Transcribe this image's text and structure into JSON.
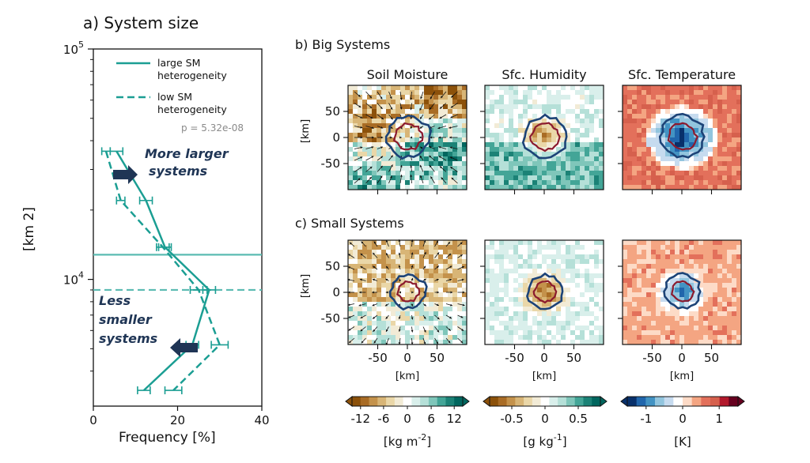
{
  "chart_data": [
    {
      "type": "line",
      "title": "a) System size",
      "xlabel": "Frequency [%]",
      "ylabel": "[km 2]",
      "xlim": [
        0,
        40
      ],
      "ylim_log10": [
        3.45,
        5.0
      ],
      "xticks": [
        "0",
        "20",
        "40"
      ],
      "yticks": [
        {
          "base": "10",
          "exp": "4",
          "value": 10000
        },
        {
          "base": "10",
          "exp": "5",
          "value": 100000
        }
      ],
      "series": [
        {
          "name": "large SM heterogeneity",
          "style": "solid",
          "color": "#1b9e93",
          "points": [
            {
              "x": 5.5,
              "xerr": 1.5,
              "y": 36000
            },
            {
              "x": 12.5,
              "xerr": 1.5,
              "y": 22000
            },
            {
              "x": 17.0,
              "xerr": 1.5,
              "y": 13800
            },
            {
              "x": 27.5,
              "xerr": 1.5,
              "y": 9000
            },
            {
              "x": 23.5,
              "xerr": 1.5,
              "y": 5200
            },
            {
              "x": 12.0,
              "xerr": 1.5,
              "y": 3300
            }
          ],
          "hline": 12800
        },
        {
          "name": "low SM heterogeneity",
          "style": "dashed",
          "color": "#1b9e93",
          "points": [
            {
              "x": 3.0,
              "xerr": 1.0,
              "y": 36000
            },
            {
              "x": 6.5,
              "xerr": 1.0,
              "y": 22000
            },
            {
              "x": 16.5,
              "xerr": 1.5,
              "y": 13800
            },
            {
              "x": 25.0,
              "xerr": 2.0,
              "y": 9000
            },
            {
              "x": 30.0,
              "xerr": 2.0,
              "y": 5200
            },
            {
              "x": 19.0,
              "xerr": 2.0,
              "y": 3300
            }
          ],
          "hline": 9000
        }
      ],
      "legend": [
        "large SM heterogeneity",
        "low SM heterogeneity"
      ],
      "annotations": [
        "p = 5.32e-08",
        "More larger systems",
        "Less smaller systems"
      ]
    },
    {
      "type": "heatmap",
      "title": "b) Big Systems",
      "panels": [
        "Soil Moisture",
        "Sfc. Humidity",
        "Sfc. Temperature"
      ],
      "xlabel": "[km]",
      "ylabel": "[km]",
      "axis_range": [
        -100,
        100
      ],
      "ticks": [
        "-50",
        "0",
        "50"
      ]
    },
    {
      "type": "heatmap",
      "title": "c) Small Systems",
      "panels": [
        "Soil Moisture",
        "Sfc. Humidity",
        "Sfc. Temperature"
      ],
      "xlabel": "[km]",
      "ylabel": "[km]",
      "axis_range": [
        -100,
        100
      ],
      "ticks": [
        "-50",
        "0",
        "50"
      ]
    }
  ],
  "legend_lines": {
    "large": [
      "large SM",
      "heterogeneity"
    ],
    "low": [
      "low SM",
      "heterogeneity"
    ]
  },
  "annotation_lines": {
    "more": [
      "More larger",
      "systems"
    ],
    "less": [
      "Less",
      "smaller",
      "systems"
    ],
    "p": "p = 5.32e-08"
  },
  "colorbars": [
    {
      "name": "soil-moisture",
      "ticks": [
        "-12",
        "-6",
        "0",
        "6",
        "12"
      ],
      "label_pre": "[kg m",
      "label_sup": "-2",
      "label_post": "]",
      "colors": [
        "#8c510a",
        "#a96c25",
        "#c4924b",
        "#d8b576",
        "#ead7a8",
        "#f2ebd6",
        "#ffffff",
        "#d9efeb",
        "#b5e0d8",
        "#7fc6ba",
        "#43a597",
        "#1b8276",
        "#01665e"
      ]
    },
    {
      "name": "humidity",
      "ticks": [
        "-0.5",
        "0",
        "0.5"
      ],
      "label_pre": "[g kg",
      "label_sup": "-1",
      "label_post": "]",
      "colors": [
        "#8c510a",
        "#a96c25",
        "#c4924b",
        "#d8b576",
        "#ead7a8",
        "#f2ebd6",
        "#ffffff",
        "#d9efeb",
        "#b5e0d8",
        "#7fc6ba",
        "#43a597",
        "#1b8276",
        "#01665e"
      ]
    },
    {
      "name": "temperature",
      "ticks": [
        "-1",
        "0",
        "1"
      ],
      "label_pre": "[K",
      "label_sup": "",
      "label_post": "]",
      "colors": [
        "#08306b",
        "#2166ac",
        "#4393c3",
        "#92c5de",
        "#c6dbef",
        "#ffffff",
        "#fddbc7",
        "#f4a582",
        "#e3705b",
        "#d6604d",
        "#b2182b",
        "#67001f"
      ]
    }
  ],
  "colors": {
    "teal": "#1b9e93",
    "navy": "#1f3555",
    "maroon": "#8b1a2e",
    "contour": "#1d4377"
  }
}
